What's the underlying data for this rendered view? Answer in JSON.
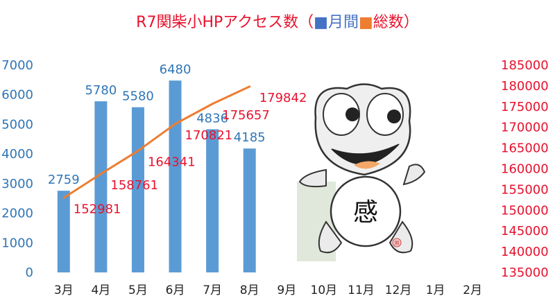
{
  "title": {
    "prefix": "R7関柴小HPアクセス数（",
    "monthly_marker": "■",
    "monthly": "月間",
    "total_marker": "■",
    "total": "総数",
    "suffix": "）"
  },
  "mascot": {
    "badge_text": "感",
    "seal_text": "関"
  },
  "colors": {
    "bars": "#5b9bd5",
    "line": "#ed7d31",
    "left_axis": "#2e75b6",
    "right_axis": "#e8112d",
    "title_red": "#e8112d",
    "title_blue": "#4472c4"
  },
  "chart_data": {
    "type": "bar",
    "categories": [
      "3月",
      "4月",
      "5月",
      "6月",
      "7月",
      "8月",
      "9月",
      "10月",
      "11月",
      "12月",
      "1月",
      "2月"
    ],
    "series": [
      {
        "name": "月間",
        "type": "bar",
        "axis": "left",
        "values": [
          2759,
          5780,
          5580,
          6480,
          4836,
          4185,
          null,
          null,
          null,
          null,
          null,
          null
        ]
      },
      {
        "name": "総数",
        "type": "line",
        "axis": "right",
        "values": [
          152981,
          158761,
          164341,
          170821,
          175657,
          179842,
          null,
          null,
          null,
          null,
          null,
          null
        ]
      }
    ],
    "left_axis": {
      "ylim": [
        0,
        7000
      ],
      "ticks": [
        "0",
        "1000",
        "2000",
        "3000",
        "4000",
        "5000",
        "6000",
        "7000"
      ]
    },
    "right_axis": {
      "ylim": [
        135000,
        185000
      ],
      "ticks": [
        "135000",
        "140000",
        "145000",
        "150000",
        "155000",
        "160000",
        "165000",
        "170000",
        "175000",
        "180000",
        "185000"
      ]
    },
    "grid": false
  }
}
